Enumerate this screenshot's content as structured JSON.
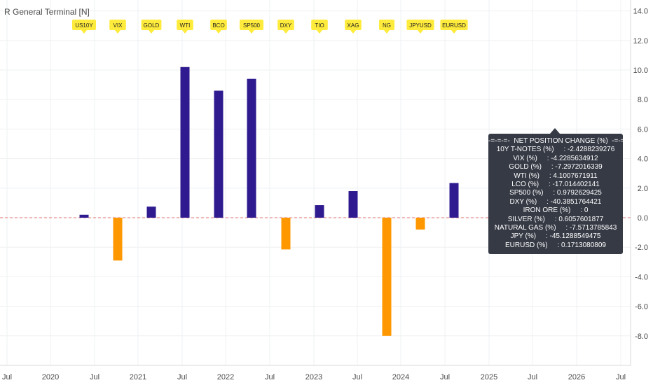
{
  "window": {
    "title": "R General Terminal [N]"
  },
  "colors": {
    "positive": "#2f1b8f",
    "negative": "#ff9800",
    "zero_line": "#e57373",
    "flag_bg": "#ffeb3b",
    "tooltip_bg": "#363a45"
  },
  "chart_data": {
    "type": "bar",
    "x_axis_ticks": [
      "Jul",
      "2020",
      "Jul",
      "2021",
      "Jul",
      "2022",
      "Jul",
      "2023",
      "Jul",
      "2024",
      "Jul",
      "2025",
      "Jul",
      "2026",
      "Jul"
    ],
    "ylim": [
      -10.0,
      15.0
    ],
    "y_ticks": [
      "14.0",
      "12.0",
      "10.0",
      "8.0",
      "6.0",
      "4.0",
      "2.0",
      "0.0",
      "-2.0",
      "-4.0",
      "-6.0",
      "-8.0"
    ],
    "categories": [
      "US10Y",
      "VIX",
      "GOLD",
      "WTI",
      "BCO",
      "SP500",
      "DXY",
      "TIO",
      "XAG",
      "NG",
      "JPYUSD",
      "EURUSD"
    ],
    "values": [
      0.2,
      -2.9,
      0.75,
      10.2,
      8.6,
      9.4,
      -2.15,
      0.85,
      1.8,
      -8.0,
      -0.8,
      2.35
    ],
    "zero_line": "dashed red"
  },
  "tooltip": {
    "header": "-=-=-=-  NET POSITION CHANGE (%)  -=-=-=-",
    "lines": [
      "10Y T-NOTES (%)     : -2.4288239276",
      "VIX (%)     : -4.2285634912",
      "GOLD (%)     : -7.2972016339",
      "WTI (%)     : 4.1007671911",
      "LCO (%)     : -17.014402141",
      "SP500 (%)     : 0.9792629425",
      "DXY (%)     : -40.3851764421",
      "IRON ORE (%)     : 0",
      "SILVER (%)     : 0.6057601877",
      "NATURAL GAS (%)     : -7.5713785843",
      "JPY (%)     : -45.1288549475",
      "EURUSD (%)     : 0.1713080809"
    ]
  }
}
